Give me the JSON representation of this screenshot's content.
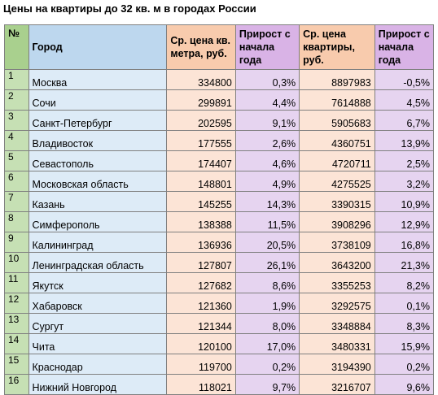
{
  "title": "Цены на квартиры до 32 кв. м в городах России",
  "table": {
    "headers": {
      "num": "№",
      "city": "Город",
      "price_sqm": "Ср. цена кв. метра, руб.",
      "growth_sqm": "Прирост с начала года",
      "price_apt": "Ср. цена квартиры, руб.",
      "growth_apt": "Прирост с начала года"
    },
    "rows": [
      {
        "num": "1",
        "city": "Москва",
        "price_sqm": "334800",
        "growth_sqm": "0,3%",
        "price_apt": "8897983",
        "growth_apt": "-0,5%"
      },
      {
        "num": "2",
        "city": "Сочи",
        "price_sqm": "299891",
        "growth_sqm": "4,4%",
        "price_apt": "7614888",
        "growth_apt": "4,5%"
      },
      {
        "num": "3",
        "city": "Санкт-Петербург",
        "price_sqm": "202595",
        "growth_sqm": "9,1%",
        "price_apt": "5905683",
        "growth_apt": "6,7%"
      },
      {
        "num": "4",
        "city": "Владивосток",
        "price_sqm": "177555",
        "growth_sqm": "2,6%",
        "price_apt": "4360751",
        "growth_apt": "13,9%"
      },
      {
        "num": "5",
        "city": "Севастополь",
        "price_sqm": "174407",
        "growth_sqm": "4,6%",
        "price_apt": "4720711",
        "growth_apt": "2,5%"
      },
      {
        "num": "6",
        "city": "Московская область",
        "price_sqm": "148801",
        "growth_sqm": "4,9%",
        "price_apt": "4275525",
        "growth_apt": "3,2%"
      },
      {
        "num": "7",
        "city": "Казань",
        "price_sqm": "145255",
        "growth_sqm": "14,3%",
        "price_apt": "3390315",
        "growth_apt": "10,9%"
      },
      {
        "num": "8",
        "city": "Симферополь",
        "price_sqm": "138388",
        "growth_sqm": "11,5%",
        "price_apt": "3908296",
        "growth_apt": "12,9%"
      },
      {
        "num": "9",
        "city": "Калининград",
        "price_sqm": "136936",
        "growth_sqm": "20,5%",
        "price_apt": "3738109",
        "growth_apt": "16,8%"
      },
      {
        "num": "10",
        "city": "Ленинградская область",
        "price_sqm": "127807",
        "growth_sqm": "26,1%",
        "price_apt": "3643200",
        "growth_apt": "21,3%"
      },
      {
        "num": "11",
        "city": "Якутск",
        "price_sqm": "127682",
        "growth_sqm": "8,6%",
        "price_apt": "3355253",
        "growth_apt": "8,2%"
      },
      {
        "num": "12",
        "city": "Хабаровск",
        "price_sqm": "121360",
        "growth_sqm": "1,9%",
        "price_apt": "3292575",
        "growth_apt": "0,1%"
      },
      {
        "num": "13",
        "city": "Сургут",
        "price_sqm": "121344",
        "growth_sqm": "8,0%",
        "price_apt": "3348884",
        "growth_apt": "8,3%"
      },
      {
        "num": "14",
        "city": "Чита",
        "price_sqm": "120100",
        "growth_sqm": "17,0%",
        "price_apt": "3480331",
        "growth_apt": "15,9%"
      },
      {
        "num": "15",
        "city": "Краснодар",
        "price_sqm": "119700",
        "growth_sqm": "0,2%",
        "price_apt": "3194390",
        "growth_apt": "0,2%"
      },
      {
        "num": "16",
        "city": "Нижний Новгород",
        "price_sqm": "118021",
        "growth_sqm": "9,7%",
        "price_apt": "3216707",
        "growth_apt": "9,6%"
      }
    ]
  }
}
